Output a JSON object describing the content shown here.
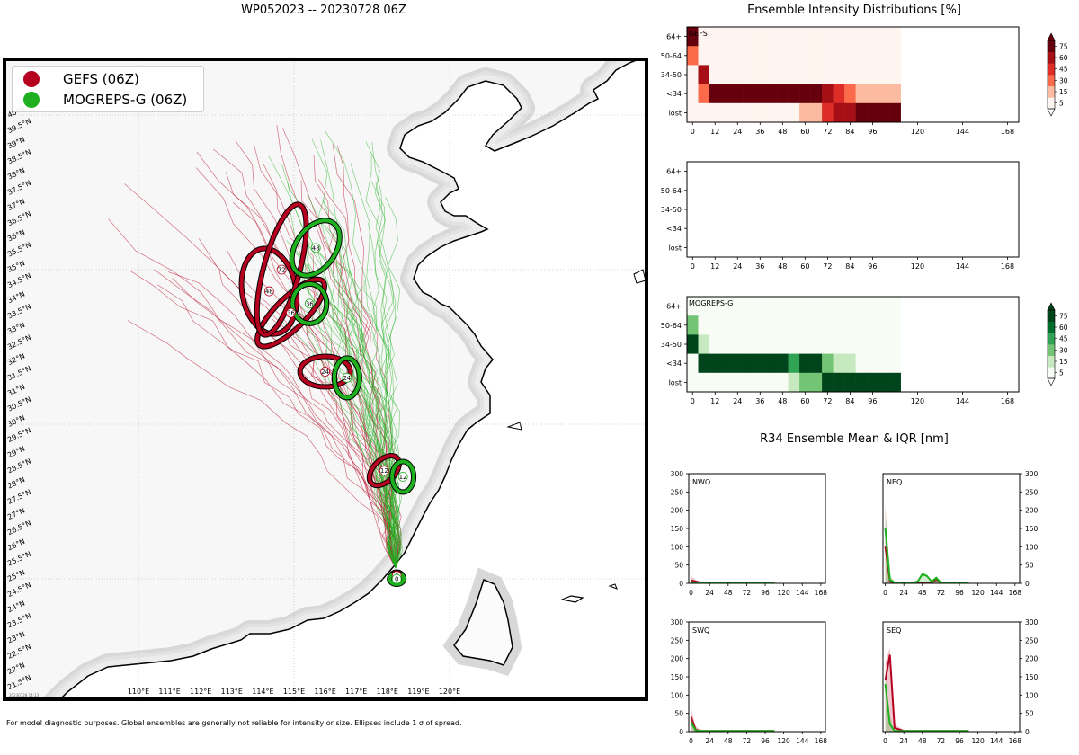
{
  "main_title": "WP052023 -- 20230728 06Z",
  "footnote": "For model diagnostic purposes. Global ensembles are generally not reliable for intensity or size. Ellipses include 1 σ of spread.",
  "right_title": "Ensemble Intensity Distributions [%]",
  "r34_title": "R34 Ensemble Mean & IQR [nm]",
  "legend": [
    {
      "label": "GEFS (06Z)",
      "color": "#b5001f"
    },
    {
      "label": "MOGREPS-G (06Z)",
      "color": "#1fb01f"
    }
  ],
  "chart_data": [
    {
      "type": "scatter",
      "title": "WP052023 track ensemble map",
      "lon_ticks": [
        "110°E",
        "111°E",
        "112°E",
        "113°E",
        "114°E",
        "115°E",
        "116°E",
        "117°E",
        "118°E",
        "119°E",
        "120°E"
      ],
      "lat_ticks": [
        "21.5°N",
        "22°N",
        "22.5°N",
        "23°N",
        "23.5°N",
        "24°N",
        "24.5°N",
        "25°N",
        "25.5°N",
        "26°N",
        "26.5°N",
        "27°N",
        "27.5°N",
        "28°N",
        "28.5°N",
        "29°N",
        "29.5°N",
        "30°N",
        "30.5°N",
        "31°N",
        "31.5°N",
        "32°N",
        "32.5°N",
        "33°N",
        "33.5°N",
        "34°N",
        "34.5°N",
        "35°N",
        "35.5°N",
        "36°N",
        "36.5°N",
        "37°N",
        "37.5°N",
        "38°N",
        "38.5°N",
        "39°N",
        "39.5°N",
        "40°N"
      ],
      "timestamp": "20230728 14:13",
      "gefs_means": [
        {
          "hour": "0",
          "lon": 118.3,
          "lat": 25.1
        },
        {
          "hour": "12",
          "lon": 117.9,
          "lat": 28.5
        },
        {
          "hour": "24",
          "lon": 116.0,
          "lat": 31.7
        },
        {
          "hour": "36",
          "lon": 114.9,
          "lat": 33.6
        },
        {
          "hour": "48",
          "lon": 114.2,
          "lat": 34.3
        },
        {
          "hour": "72",
          "lon": 114.6,
          "lat": 35.0
        }
      ],
      "mogreps_means": [
        {
          "hour": "0",
          "lon": 118.3,
          "lat": 25.0
        },
        {
          "hour": "12",
          "lon": 118.5,
          "lat": 28.3
        },
        {
          "hour": "24",
          "lon": 116.7,
          "lat": 31.5
        },
        {
          "hour": "36",
          "lon": 115.5,
          "lat": 33.9
        },
        {
          "hour": "48",
          "lon": 115.7,
          "lat": 35.7
        }
      ]
    },
    {
      "type": "heatmap",
      "title": "GEFS",
      "x_ticks": [
        "0",
        "12",
        "24",
        "36",
        "48",
        "60",
        "72",
        "84",
        "96",
        "120",
        "144",
        "168"
      ],
      "y_labels": [
        "64+",
        "50-64",
        "34-50",
        "<34",
        "lost"
      ],
      "xlim": [
        -3,
        174
      ],
      "bin_hours": [
        0,
        6,
        12,
        18,
        24,
        30,
        36,
        42,
        48,
        54,
        60,
        66,
        72,
        78,
        84,
        90,
        96,
        102,
        108
      ],
      "values": [
        [
          75,
          5,
          5,
          5,
          5,
          5,
          5,
          5,
          5,
          5,
          5,
          5,
          5,
          5,
          5,
          5,
          5,
          5,
          5
        ],
        [
          25,
          5,
          5,
          5,
          5,
          5,
          5,
          5,
          5,
          5,
          5,
          5,
          5,
          5,
          5,
          5,
          5,
          5,
          5
        ],
        [
          5,
          60,
          5,
          5,
          5,
          5,
          5,
          5,
          5,
          5,
          5,
          5,
          5,
          5,
          5,
          5,
          5,
          5,
          5
        ],
        [
          5,
          35,
          90,
          90,
          90,
          90,
          90,
          90,
          90,
          90,
          70,
          70,
          55,
          40,
          30,
          15,
          15,
          15,
          15
        ],
        [
          5,
          5,
          5,
          5,
          5,
          5,
          5,
          5,
          5,
          5,
          10,
          20,
          40,
          55,
          60,
          75,
          80,
          80,
          80
        ]
      ],
      "colorbar_ticks": [
        "5",
        "15",
        "30",
        "45",
        "60",
        "75"
      ]
    },
    {
      "type": "heatmap",
      "title": "",
      "x_ticks": [
        "0",
        "12",
        "24",
        "36",
        "48",
        "60",
        "72",
        "84",
        "96",
        "120",
        "144",
        "168"
      ],
      "y_labels": [
        "64+",
        "50-64",
        "34-50",
        "<34",
        "lost"
      ],
      "xlim": [
        -3,
        174
      ],
      "values": []
    },
    {
      "type": "heatmap",
      "title": "MOGREPS-G",
      "x_ticks": [
        "0",
        "12",
        "24",
        "36",
        "48",
        "60",
        "72",
        "84",
        "96",
        "120",
        "144",
        "168"
      ],
      "y_labels": [
        "64+",
        "50-64",
        "34-50",
        "<34",
        "lost"
      ],
      "xlim": [
        -3,
        174
      ],
      "bin_hours": [
        0,
        6,
        12,
        18,
        24,
        30,
        36,
        42,
        48,
        54,
        60,
        66,
        72,
        78,
        84,
        90,
        96,
        102,
        108
      ],
      "values": [
        [
          5,
          5,
          5,
          5,
          5,
          5,
          5,
          5,
          5,
          5,
          5,
          5,
          5,
          5,
          5,
          5,
          5,
          5,
          5
        ],
        [
          25,
          5,
          5,
          5,
          5,
          5,
          5,
          5,
          5,
          5,
          5,
          5,
          5,
          5,
          5,
          5,
          5,
          5,
          5
        ],
        [
          70,
          20,
          5,
          5,
          5,
          5,
          5,
          5,
          5,
          5,
          5,
          5,
          5,
          5,
          5,
          5,
          5,
          5,
          5
        ],
        [
          5,
          90,
          90,
          90,
          90,
          90,
          90,
          90,
          90,
          40,
          70,
          70,
          25,
          15,
          15,
          5,
          5,
          5,
          5
        ],
        [
          5,
          5,
          5,
          5,
          5,
          5,
          5,
          5,
          5,
          20,
          35,
          35,
          90,
          90,
          90,
          90,
          90,
          90,
          90
        ]
      ],
      "colorbar_ticks": [
        "5",
        "15",
        "30",
        "45",
        "60",
        "75"
      ]
    },
    {
      "type": "line",
      "title": "NWQ",
      "x_ticks": [
        "0",
        "24",
        "48",
        "72",
        "96",
        "120",
        "144",
        "168"
      ],
      "y_ticks": [
        "0",
        "50",
        "100",
        "150",
        "200",
        "250",
        "300"
      ],
      "ylim": [
        0,
        300
      ],
      "xlim": [
        -3,
        174
      ],
      "yaxis": "left",
      "series": [
        {
          "name": "GEFS",
          "x": [
            0,
            6,
            12,
            24,
            48,
            72,
            96,
            108
          ],
          "values": [
            8,
            5,
            2,
            2,
            2,
            2,
            2,
            2
          ],
          "iqr_high": [
            20,
            10,
            4,
            3,
            3,
            3,
            3,
            3
          ]
        },
        {
          "name": "MOGREPS-G",
          "x": [
            0,
            6,
            12,
            24,
            48,
            72,
            96,
            108
          ],
          "values": [
            3,
            2,
            2,
            2,
            2,
            2,
            2,
            2
          ],
          "iqr_high": [
            8,
            4,
            3,
            3,
            3,
            3,
            3,
            3
          ]
        }
      ]
    },
    {
      "type": "line",
      "title": "NEQ",
      "x_ticks": [
        "0",
        "24",
        "48",
        "72",
        "96",
        "120",
        "144",
        "168"
      ],
      "y_ticks": [
        "0",
        "50",
        "100",
        "150",
        "200",
        "250",
        "300"
      ],
      "ylim": [
        0,
        300
      ],
      "xlim": [
        -3,
        174
      ],
      "yaxis": "right",
      "series": [
        {
          "name": "GEFS",
          "x": [
            0,
            6,
            12,
            24,
            36,
            48,
            60,
            66,
            72,
            78,
            96,
            108
          ],
          "values": [
            100,
            5,
            2,
            2,
            2,
            2,
            2,
            10,
            2,
            2,
            2,
            2
          ],
          "iqr_high": [
            215,
            15,
            5,
            4,
            4,
            4,
            4,
            14,
            4,
            4,
            4,
            4
          ]
        },
        {
          "name": "MOGREPS-G",
          "x": [
            0,
            6,
            12,
            24,
            36,
            42,
            48,
            54,
            60,
            66,
            72,
            84,
            96,
            108
          ],
          "values": [
            150,
            10,
            2,
            2,
            2,
            5,
            25,
            20,
            5,
            15,
            2,
            2,
            2,
            2
          ],
          "iqr_high": [
            200,
            25,
            5,
            4,
            4,
            8,
            30,
            25,
            8,
            20,
            4,
            4,
            4,
            4
          ]
        }
      ]
    },
    {
      "type": "line",
      "title": "SWQ",
      "x_ticks": [
        "0",
        "24",
        "48",
        "72",
        "96",
        "120",
        "144",
        "168"
      ],
      "y_ticks": [
        "0",
        "50",
        "100",
        "150",
        "200",
        "250",
        "300"
      ],
      "ylim": [
        0,
        300
      ],
      "xlim": [
        -3,
        174
      ],
      "yaxis": "left",
      "series": [
        {
          "name": "GEFS",
          "x": [
            0,
            6,
            12,
            24,
            48,
            72,
            96,
            108
          ],
          "values": [
            40,
            5,
            2,
            2,
            2,
            2,
            2,
            2
          ],
          "iqr_high": [
            65,
            15,
            4,
            3,
            3,
            3,
            3,
            3
          ]
        },
        {
          "name": "MOGREPS-G",
          "x": [
            0,
            6,
            12,
            24,
            48,
            72,
            96,
            108
          ],
          "values": [
            25,
            3,
            2,
            2,
            2,
            2,
            2,
            2
          ],
          "iqr_high": [
            40,
            8,
            3,
            3,
            3,
            3,
            3,
            3
          ]
        }
      ]
    },
    {
      "type": "line",
      "title": "SEQ",
      "x_ticks": [
        "0",
        "24",
        "48",
        "72",
        "96",
        "120",
        "144",
        "168"
      ],
      "y_ticks": [
        "0",
        "50",
        "100",
        "150",
        "200",
        "250",
        "300"
      ],
      "ylim": [
        0,
        300
      ],
      "xlim": [
        -3,
        174
      ],
      "yaxis": "right",
      "series": [
        {
          "name": "GEFS",
          "x": [
            0,
            6,
            12,
            24,
            48,
            72,
            96,
            108
          ],
          "values": [
            140,
            210,
            10,
            2,
            2,
            2,
            2,
            2
          ],
          "iqr_high": [
            190,
            230,
            20,
            4,
            4,
            4,
            4,
            4
          ]
        },
        {
          "name": "MOGREPS-G",
          "x": [
            0,
            6,
            12,
            24,
            48,
            72,
            96,
            108
          ],
          "values": [
            130,
            20,
            2,
            2,
            2,
            2,
            2,
            2
          ],
          "iqr_high": [
            160,
            40,
            4,
            3,
            3,
            3,
            3,
            3
          ]
        }
      ]
    }
  ]
}
